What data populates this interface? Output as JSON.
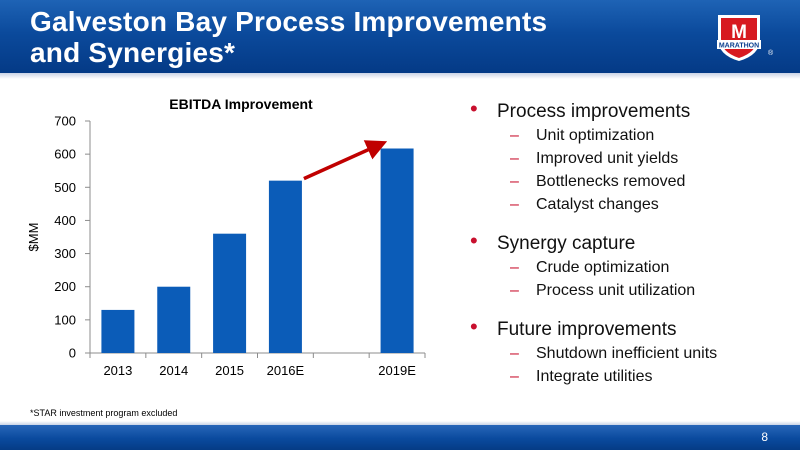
{
  "slide": {
    "title_line1": "Galveston Bay Process Improvements",
    "title_line2": "and Synergies*",
    "logo_text": "MARATHON",
    "logo_mark": "M",
    "registered": "®",
    "footnote": "*STAR investment program excluded",
    "page_number": "8"
  },
  "chart_data": {
    "type": "bar",
    "title": "EBITDA Improvement",
    "ylabel": "$MM",
    "xlabel": "",
    "categories": [
      "2013",
      "2014",
      "2015",
      "2016E",
      "",
      "2019E"
    ],
    "values": [
      130,
      200,
      360,
      520,
      null,
      617
    ],
    "ylim": [
      0,
      700
    ],
    "yticks": [
      0,
      100,
      200,
      300,
      400,
      500,
      600,
      700
    ],
    "grid": false,
    "bar_color": "#0b5cb8",
    "annotation": {
      "type": "arrow",
      "from_category": "2016E",
      "to_category": "2019E",
      "color": "#c00000"
    }
  },
  "bullets": [
    {
      "label": "Process improvements",
      "subs": [
        "Unit optimization",
        "Improved unit yields",
        "Bottlenecks removed",
        "Catalyst changes"
      ]
    },
    {
      "label": "Synergy capture",
      "subs": [
        "Crude optimization",
        "Process unit utilization"
      ]
    },
    {
      "label": "Future improvements",
      "subs": [
        "Shutdown inefficient units",
        "Integrate utilities"
      ]
    }
  ],
  "colors": {
    "header_blue": "#0b4a9c",
    "accent_red": "#c8102e",
    "bar_blue": "#0b5cb8"
  }
}
